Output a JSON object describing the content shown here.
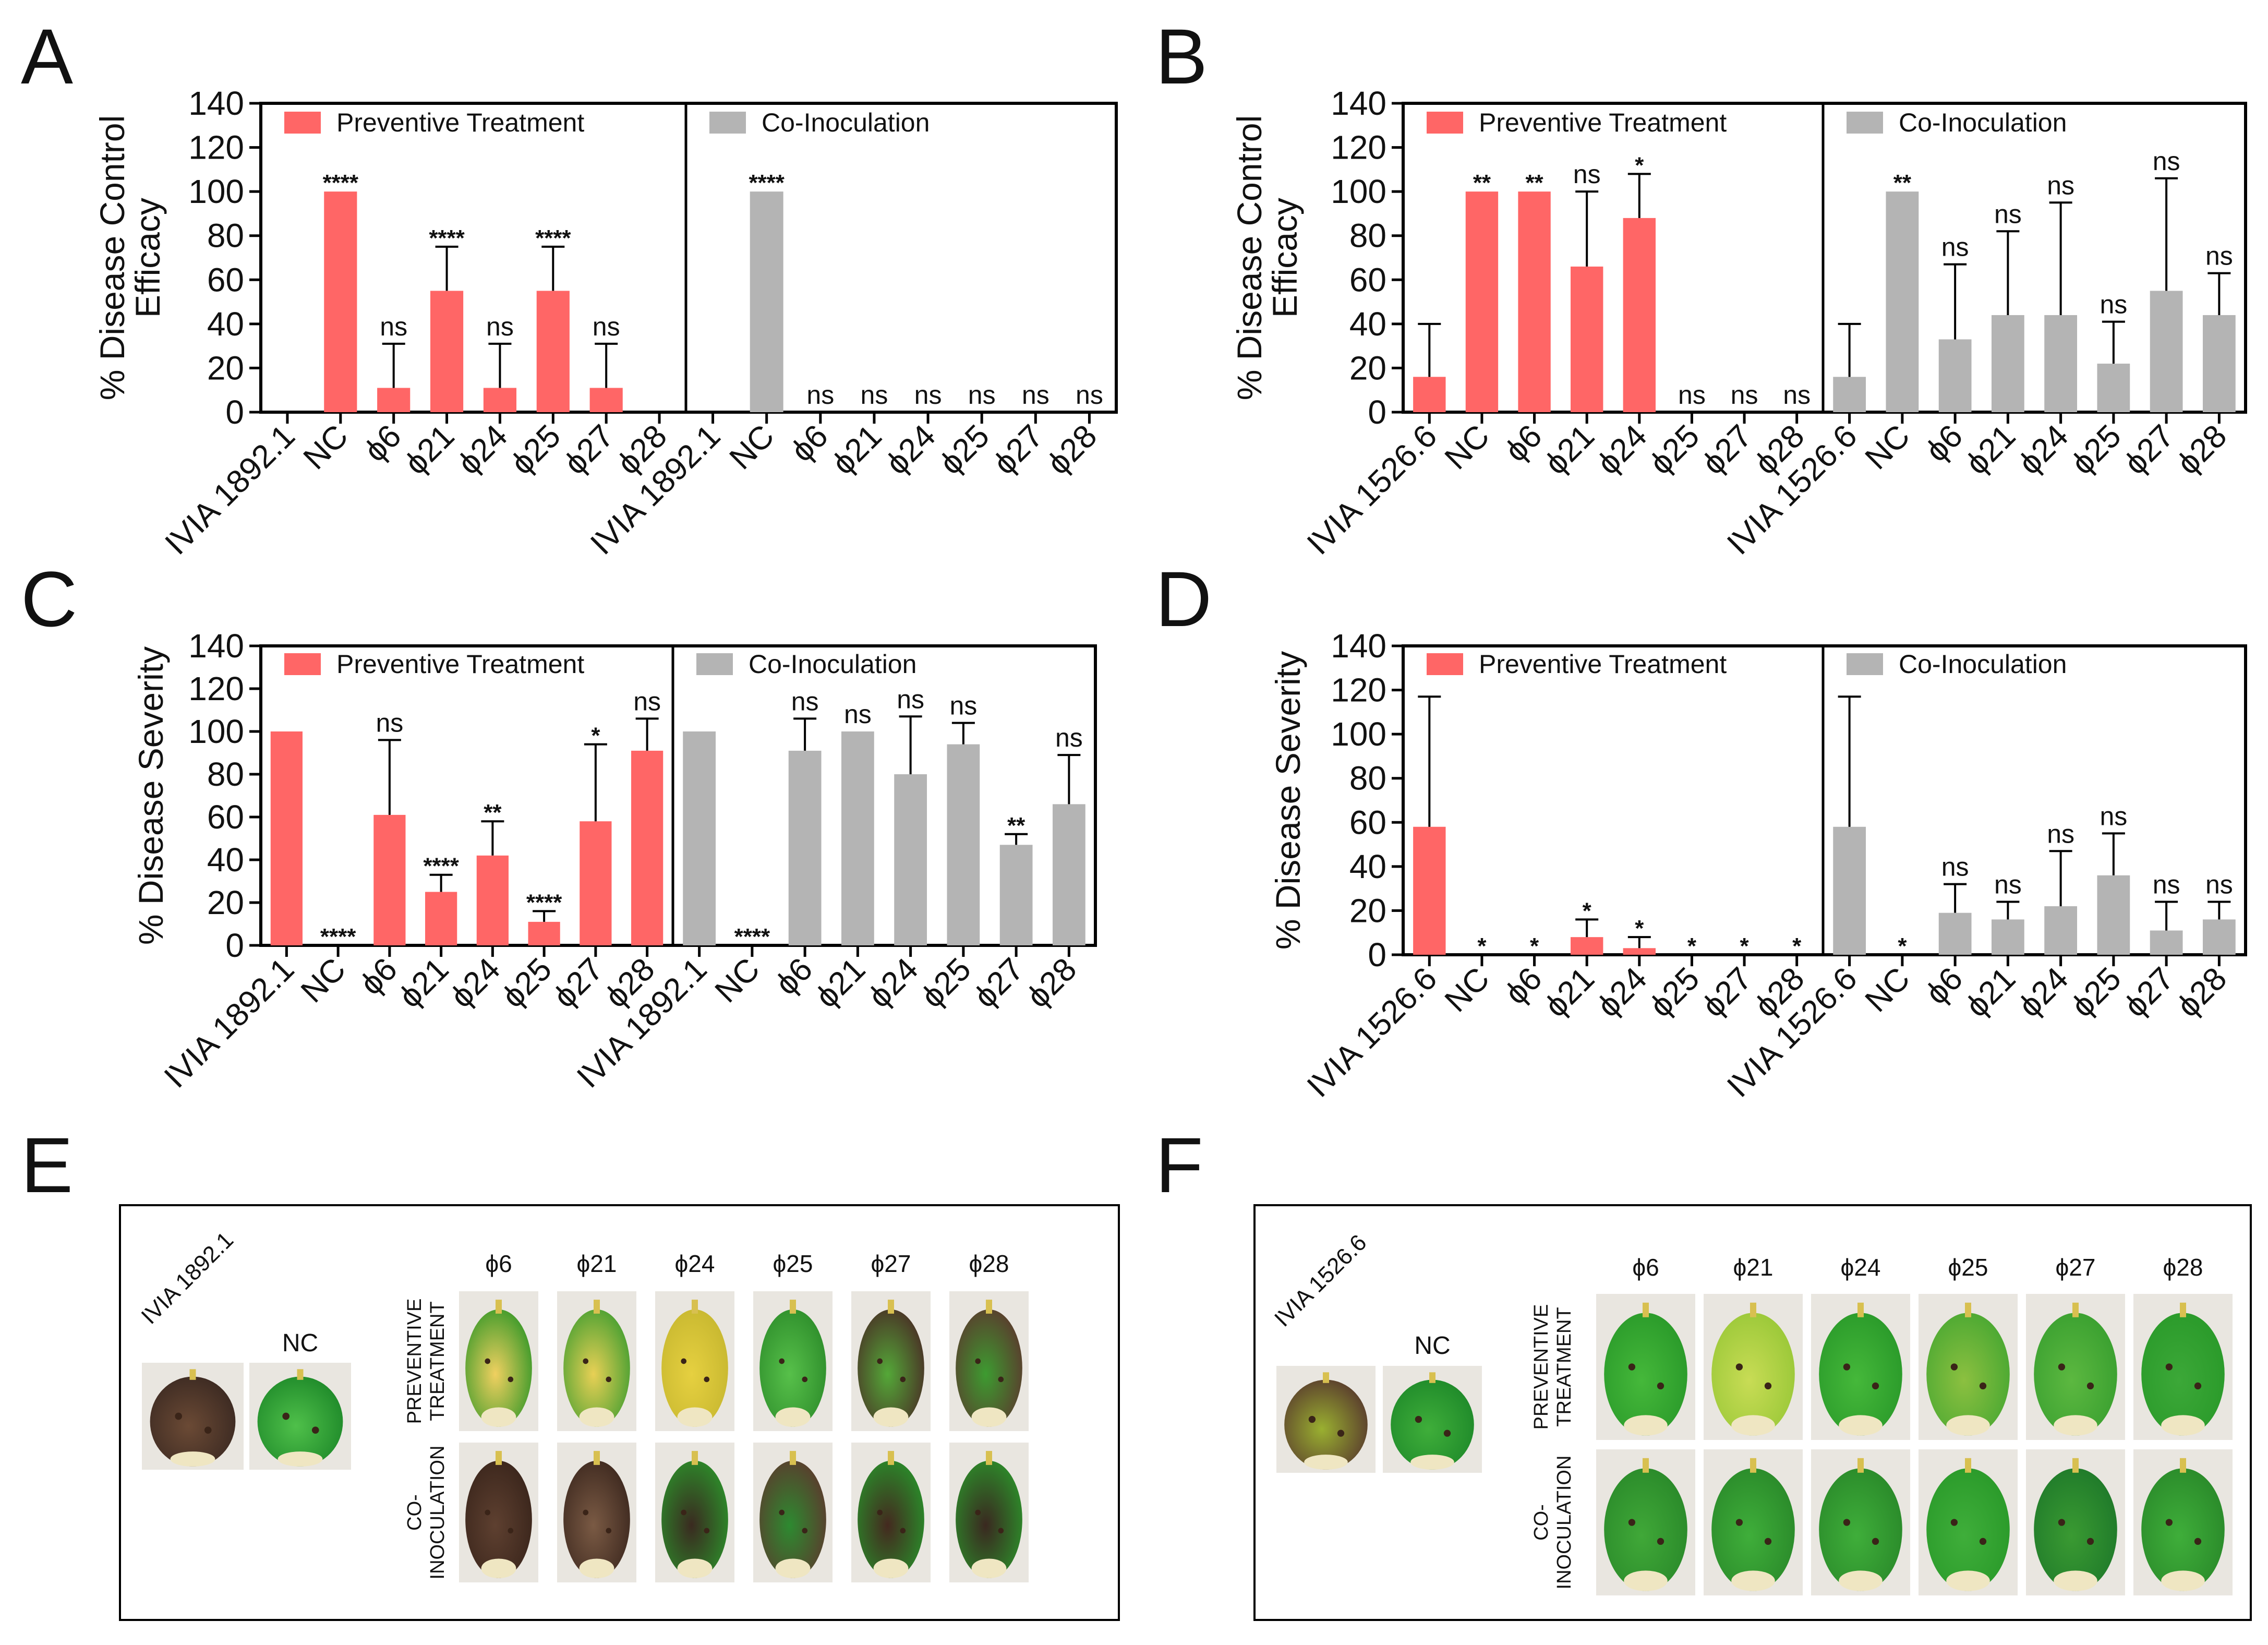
{
  "colors": {
    "preventive": "#ff6666",
    "coinoculation": "#b4b4b4",
    "axis": "#000000"
  },
  "panel_letters": [
    "A",
    "B",
    "C",
    "D",
    "E",
    "F"
  ],
  "chart_data": [
    {
      "panel": "A",
      "type": "bar",
      "ylabel": "% Disease Control Efficacy",
      "ylabel_lines": [
        "% Disease Control",
        "Efficacy"
      ],
      "ylim": [
        0,
        140
      ],
      "yticks": [
        0,
        20,
        40,
        60,
        80,
        100,
        120,
        140
      ],
      "categories": [
        "IVIA 1892.1",
        "NC",
        "ϕ6",
        "ϕ21",
        "ϕ24",
        "ϕ25",
        "ϕ27",
        "ϕ28"
      ],
      "series": [
        {
          "name": "Preventive Treatment",
          "color": "preventive",
          "values": [
            0,
            100,
            11,
            55,
            11,
            55,
            11,
            0
          ],
          "error": [
            0,
            0,
            20,
            20,
            20,
            20,
            20,
            0
          ],
          "significance": [
            "",
            "****",
            "ns",
            "****",
            "ns",
            "****",
            "ns",
            ""
          ]
        },
        {
          "name": "Co-Inoculation",
          "color": "coinoculation",
          "values": [
            0,
            100,
            0,
            0,
            0,
            0,
            0,
            0
          ],
          "error": [
            0,
            0,
            0,
            0,
            0,
            0,
            0,
            0
          ],
          "significance": [
            "",
            "****",
            "ns",
            "ns",
            "ns",
            "ns",
            "ns",
            "ns"
          ]
        }
      ]
    },
    {
      "panel": "B",
      "type": "bar",
      "ylabel": "% Disease Control Efficacy",
      "ylabel_lines": [
        "% Disease Control",
        "Efficacy"
      ],
      "ylim": [
        0,
        140
      ],
      "yticks": [
        0,
        20,
        40,
        60,
        80,
        100,
        120,
        140
      ],
      "categories": [
        "IVIA 1526.6",
        "NC",
        "ϕ6",
        "ϕ21",
        "ϕ24",
        "ϕ25",
        "ϕ27",
        "ϕ28"
      ],
      "series": [
        {
          "name": "Preventive Treatment",
          "color": "preventive",
          "values": [
            16,
            100,
            100,
            66,
            88,
            0,
            0,
            0
          ],
          "error": [
            24,
            0,
            0,
            34,
            20,
            0,
            0,
            0
          ],
          "significance": [
            "",
            "**",
            "**",
            "ns",
            "*",
            "ns",
            "ns",
            "ns"
          ]
        },
        {
          "name": "Co-Inoculation",
          "color": "coinoculation",
          "values": [
            16,
            100,
            33,
            44,
            44,
            22,
            55,
            44
          ],
          "error": [
            24,
            0,
            34,
            38,
            51,
            19,
            51,
            19
          ],
          "significance": [
            "",
            "**",
            "ns",
            "ns",
            "ns",
            "ns",
            "ns",
            "ns"
          ]
        }
      ]
    },
    {
      "panel": "C",
      "type": "bar",
      "ylabel": "% Disease Severity",
      "ylabel_lines": [
        "% Disease Severity"
      ],
      "ylim": [
        0,
        140
      ],
      "yticks": [
        0,
        20,
        40,
        60,
        80,
        100,
        120,
        140
      ],
      "categories": [
        "IVIA 1892.1",
        "NC",
        "ϕ6",
        "ϕ21",
        "ϕ24",
        "ϕ25",
        "ϕ27",
        "ϕ28"
      ],
      "series": [
        {
          "name": "Preventive Treatment",
          "color": "preventive",
          "values": [
            100,
            0,
            61,
            25,
            42,
            11,
            58,
            91
          ],
          "error": [
            0,
            0,
            35,
            8,
            16,
            5,
            36,
            15
          ],
          "significance": [
            "",
            "****",
            "ns",
            "****",
            "**",
            "****",
            "*",
            "ns"
          ]
        },
        {
          "name": "Co-Inoculation",
          "color": "coinoculation",
          "values": [
            100,
            0,
            91,
            100,
            80,
            94,
            47,
            66
          ],
          "error": [
            0,
            0,
            15,
            0,
            27,
            10,
            5,
            23
          ],
          "significance": [
            "",
            "****",
            "ns",
            "ns",
            "ns",
            "ns",
            "**",
            "ns"
          ]
        }
      ]
    },
    {
      "panel": "D",
      "type": "bar",
      "ylabel": "% Disease Severity",
      "ylabel_lines": [
        "% Disease Severity"
      ],
      "ylim": [
        0,
        140
      ],
      "yticks": [
        0,
        20,
        40,
        60,
        80,
        100,
        120,
        140
      ],
      "categories": [
        "IVIA 1526.6",
        "NC",
        "ϕ6",
        "ϕ21",
        "ϕ24",
        "ϕ25",
        "ϕ27",
        "ϕ28"
      ],
      "series": [
        {
          "name": "Preventive Treatment",
          "color": "preventive",
          "values": [
            58,
            0,
            0,
            8,
            3,
            0,
            0,
            0
          ],
          "error": [
            59,
            0,
            0,
            8,
            5,
            0,
            0,
            0
          ],
          "significance": [
            "",
            "*",
            "*",
            "*",
            "*",
            "*",
            "*",
            "*"
          ]
        },
        {
          "name": "Co-Inoculation",
          "color": "coinoculation",
          "values": [
            58,
            0,
            19,
            16,
            22,
            36,
            11,
            16
          ],
          "error": [
            59,
            0,
            13,
            8,
            25,
            19,
            13,
            8
          ],
          "significance": [
            "",
            "*",
            "ns",
            "ns",
            "ns",
            "ns",
            "ns",
            "ns"
          ]
        }
      ]
    }
  ],
  "photo_panels": [
    {
      "panel": "E",
      "control_labels": [
        "IVIA 1892.1",
        "NC"
      ],
      "phage_labels": [
        "ϕ6",
        "ϕ21",
        "ϕ24",
        "ϕ25",
        "ϕ27",
        "ϕ28"
      ],
      "row_labels": [
        [
          "PREVENTIVE",
          "TREATMENT"
        ],
        [
          "CO-",
          "INOCULATION"
        ]
      ]
    },
    {
      "panel": "F",
      "control_labels": [
        "IVIA 1526.6",
        "NC"
      ],
      "phage_labels": [
        "ϕ6",
        "ϕ21",
        "ϕ24",
        "ϕ25",
        "ϕ27",
        "ϕ28"
      ],
      "row_labels": [
        [
          "PREVENTIVE",
          "TREATMENT"
        ],
        [
          "CO-",
          "INOCULATION"
        ]
      ]
    }
  ]
}
